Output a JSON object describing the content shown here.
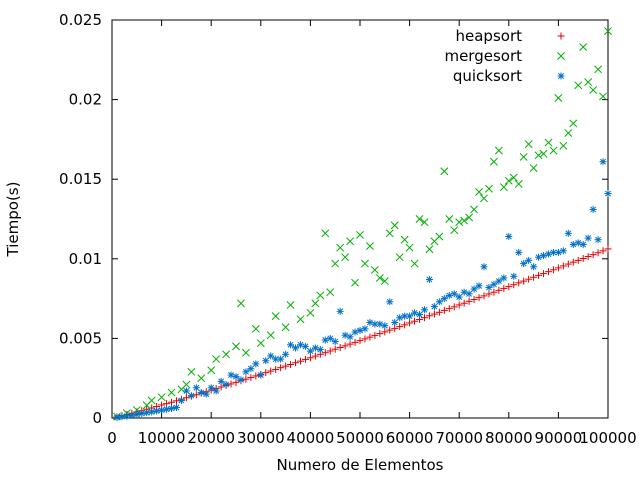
{
  "chart_data": {
    "type": "scatter",
    "title": "",
    "xlabel": "Numero de Elementos",
    "ylabel": "Tiempo(s)",
    "xlim": [
      0,
      100000
    ],
    "ylim": [
      0,
      0.025
    ],
    "grid": false,
    "legend_position": "top-right",
    "x_ticks": [
      "0",
      "10000",
      "20000",
      "30000",
      "40000",
      "50000",
      "60000",
      "70000",
      "80000",
      "90000",
      "100000"
    ],
    "y_ticks": [
      "0",
      "0.005",
      "0.01",
      "0.015",
      "0.02",
      "0.025"
    ],
    "series": [
      {
        "name": "heapsort",
        "marker": "+",
        "color": "#e00000",
        "points": [
          [
            1000,
            7e-05
          ],
          [
            2000,
            0.00015
          ],
          [
            3000,
            0.00022
          ],
          [
            4000,
            0.0003
          ],
          [
            5000,
            0.00038
          ],
          [
            6000,
            0.00046
          ],
          [
            7000,
            0.00055
          ],
          [
            8000,
            0.00063
          ],
          [
            9000,
            0.00072
          ],
          [
            10000,
            0.00082
          ],
          [
            11000,
            0.0009
          ],
          [
            12000,
            0.00099
          ],
          [
            13000,
            0.00108
          ],
          [
            14000,
            0.00118
          ],
          [
            15000,
            0.00127
          ],
          [
            16000,
            0.00137
          ],
          [
            17000,
            0.00146
          ],
          [
            18000,
            0.00156
          ],
          [
            19000,
            0.00165
          ],
          [
            20000,
            0.00175
          ],
          [
            21000,
            0.00185
          ],
          [
            22000,
            0.00195
          ],
          [
            23000,
            0.00204
          ],
          [
            24000,
            0.00214
          ],
          [
            25000,
            0.00224
          ],
          [
            26000,
            0.00234
          ],
          [
            27000,
            0.00244
          ],
          [
            28000,
            0.00254
          ],
          [
            29000,
            0.00264
          ],
          [
            30000,
            0.00274
          ],
          [
            31000,
            0.00285
          ],
          [
            32000,
            0.00295
          ],
          [
            33000,
            0.00305
          ],
          [
            34000,
            0.00316
          ],
          [
            35000,
            0.00326
          ],
          [
            36000,
            0.00336
          ],
          [
            37000,
            0.00347
          ],
          [
            38000,
            0.00357
          ],
          [
            39000,
            0.00368
          ],
          [
            40000,
            0.00378
          ],
          [
            41000,
            0.00389
          ],
          [
            42000,
            0.004
          ],
          [
            43000,
            0.0041
          ],
          [
            44000,
            0.00421
          ],
          [
            45000,
            0.00432
          ],
          [
            46000,
            0.00443
          ],
          [
            47000,
            0.00453
          ],
          [
            48000,
            0.00464
          ],
          [
            49000,
            0.00475
          ],
          [
            50000,
            0.00486
          ],
          [
            51000,
            0.00497
          ],
          [
            52000,
            0.00508
          ],
          [
            53000,
            0.00519
          ],
          [
            54000,
            0.0053
          ],
          [
            55000,
            0.00541
          ],
          [
            56000,
            0.00552
          ],
          [
            57000,
            0.00563
          ],
          [
            58000,
            0.00574
          ],
          [
            59000,
            0.00585
          ],
          [
            60000,
            0.00597
          ],
          [
            61000,
            0.00608
          ],
          [
            62000,
            0.00619
          ],
          [
            63000,
            0.0063
          ],
          [
            64000,
            0.00642
          ],
          [
            65000,
            0.00653
          ],
          [
            66000,
            0.00664
          ],
          [
            67000,
            0.00676
          ],
          [
            68000,
            0.00687
          ],
          [
            69000,
            0.00698
          ],
          [
            70000,
            0.0071
          ],
          [
            71000,
            0.00721
          ],
          [
            72000,
            0.00733
          ],
          [
            73000,
            0.00744
          ],
          [
            74000,
            0.00756
          ],
          [
            75000,
            0.00767
          ],
          [
            76000,
            0.00779
          ],
          [
            77000,
            0.0079
          ],
          [
            78000,
            0.00802
          ],
          [
            79000,
            0.00814
          ],
          [
            80000,
            0.00825
          ],
          [
            81000,
            0.00837
          ],
          [
            82000,
            0.00849
          ],
          [
            83000,
            0.0086
          ],
          [
            84000,
            0.00872
          ],
          [
            85000,
            0.00884
          ],
          [
            86000,
            0.00896
          ],
          [
            87000,
            0.00907
          ],
          [
            88000,
            0.00919
          ],
          [
            89000,
            0.00931
          ],
          [
            90000,
            0.00943
          ],
          [
            91000,
            0.00955
          ],
          [
            92000,
            0.00967
          ],
          [
            93000,
            0.00979
          ],
          [
            94000,
            0.0099
          ],
          [
            95000,
            0.01002
          ],
          [
            96000,
            0.01014
          ],
          [
            97000,
            0.01026
          ],
          [
            98000,
            0.01038
          ],
          [
            99000,
            0.0105
          ],
          [
            100000,
            0.01062
          ]
        ]
      },
      {
        "name": "mergesort",
        "marker": "x",
        "color": "#00b000",
        "points": [
          [
            1000,
            0.0001
          ],
          [
            3000,
            0.0003
          ],
          [
            5000,
            0.0005
          ],
          [
            7000,
            0.0008
          ],
          [
            8000,
            0.0011
          ],
          [
            10000,
            0.0013
          ],
          [
            12000,
            0.0016
          ],
          [
            14000,
            0.0018
          ],
          [
            15000,
            0.0021
          ],
          [
            16000,
            0.0029
          ],
          [
            18000,
            0.0025
          ],
          [
            20000,
            0.003
          ],
          [
            21000,
            0.0037
          ],
          [
            23000,
            0.004
          ],
          [
            25000,
            0.0045
          ],
          [
            26000,
            0.0072
          ],
          [
            27000,
            0.0041
          ],
          [
            29000,
            0.0056
          ],
          [
            30000,
            0.0047
          ],
          [
            32000,
            0.0052
          ],
          [
            33000,
            0.0064
          ],
          [
            35000,
            0.0057
          ],
          [
            36000,
            0.0071
          ],
          [
            38000,
            0.0062
          ],
          [
            40000,
            0.0066
          ],
          [
            41000,
            0.0072
          ],
          [
            42000,
            0.0077
          ],
          [
            43000,
            0.0116
          ],
          [
            44000,
            0.0079
          ],
          [
            45000,
            0.0097
          ],
          [
            46000,
            0.0107
          ],
          [
            47000,
            0.0101
          ],
          [
            48000,
            0.0111
          ],
          [
            49000,
            0.0085
          ],
          [
            50000,
            0.0115
          ],
          [
            51000,
            0.0097
          ],
          [
            52000,
            0.0108
          ],
          [
            53000,
            0.0093
          ],
          [
            54000,
            0.0088
          ],
          [
            55000,
            0.0086
          ],
          [
            56000,
            0.0116
          ],
          [
            57000,
            0.0121
          ],
          [
            58000,
            0.0101
          ],
          [
            59000,
            0.0112
          ],
          [
            60000,
            0.0107
          ],
          [
            61000,
            0.0097
          ],
          [
            62000,
            0.0125
          ],
          [
            63000,
            0.0123
          ],
          [
            64000,
            0.0106
          ],
          [
            65000,
            0.0111
          ],
          [
            66000,
            0.0114
          ],
          [
            67000,
            0.0155
          ],
          [
            68000,
            0.0125
          ],
          [
            69000,
            0.0118
          ],
          [
            70000,
            0.0123
          ],
          [
            71000,
            0.0124
          ],
          [
            72000,
            0.0126
          ],
          [
            73000,
            0.0131
          ],
          [
            74000,
            0.0142
          ],
          [
            75000,
            0.0138
          ],
          [
            76000,
            0.0144
          ],
          [
            77000,
            0.0161
          ],
          [
            78000,
            0.0168
          ],
          [
            79000,
            0.0145
          ],
          [
            80000,
            0.0149
          ],
          [
            81000,
            0.0151
          ],
          [
            82000,
            0.0147
          ],
          [
            83000,
            0.0164
          ],
          [
            84000,
            0.0172
          ],
          [
            85000,
            0.0157
          ],
          [
            86000,
            0.0165
          ],
          [
            87000,
            0.0166
          ],
          [
            88000,
            0.0173
          ],
          [
            89000,
            0.0168
          ],
          [
            90000,
            0.0201
          ],
          [
            91000,
            0.0171
          ],
          [
            92000,
            0.0179
          ],
          [
            93000,
            0.0185
          ],
          [
            94000,
            0.0209
          ],
          [
            95000,
            0.0233
          ],
          [
            96000,
            0.0211
          ],
          [
            97000,
            0.0206
          ],
          [
            98000,
            0.0219
          ],
          [
            99000,
            0.0202
          ],
          [
            100000,
            0.0243
          ]
        ]
      },
      {
        "name": "quicksort",
        "marker": "*",
        "color": "#0070c8",
        "points": [
          [
            1000,
            3e-05
          ],
          [
            2000,
            8e-05
          ],
          [
            3000,
            0.00012
          ],
          [
            4000,
            0.00017
          ],
          [
            5000,
            0.00022
          ],
          [
            6000,
            0.00028
          ],
          [
            7000,
            0.00033
          ],
          [
            8000,
            0.00038
          ],
          [
            9000,
            0.00044
          ],
          [
            10000,
            0.00049
          ],
          [
            11000,
            0.00055
          ],
          [
            12000,
            0.0006
          ],
          [
            13000,
            0.00066
          ],
          [
            14000,
            0.0011
          ],
          [
            15000,
            0.0017
          ],
          [
            16000,
            0.0014
          ],
          [
            17000,
            0.0019
          ],
          [
            18000,
            0.0016
          ],
          [
            19000,
            0.0015
          ],
          [
            20000,
            0.0019
          ],
          [
            21000,
            0.0017
          ],
          [
            22000,
            0.0023
          ],
          [
            23000,
            0.0021
          ],
          [
            24000,
            0.0027
          ],
          [
            25000,
            0.0026
          ],
          [
            26000,
            0.0024
          ],
          [
            27000,
            0.0029
          ],
          [
            28000,
            0.0031
          ],
          [
            29000,
            0.0034
          ],
          [
            30000,
            0.0027
          ],
          [
            31000,
            0.0036
          ],
          [
            32000,
            0.0039
          ],
          [
            33000,
            0.0037
          ],
          [
            34000,
            0.0037
          ],
          [
            35000,
            0.004
          ],
          [
            36000,
            0.0046
          ],
          [
            37000,
            0.0044
          ],
          [
            38000,
            0.0046
          ],
          [
            39000,
            0.0045
          ],
          [
            40000,
            0.0042
          ],
          [
            41000,
            0.0044
          ],
          [
            42000,
            0.0043
          ],
          [
            43000,
            0.0049
          ],
          [
            44000,
            0.005
          ],
          [
            45000,
            0.0048
          ],
          [
            46000,
            0.0067
          ],
          [
            47000,
            0.0052
          ],
          [
            48000,
            0.0051
          ],
          [
            49000,
            0.0054
          ],
          [
            50000,
            0.0055
          ],
          [
            51000,
            0.0056
          ],
          [
            52000,
            0.006
          ],
          [
            53000,
            0.0059
          ],
          [
            54000,
            0.0059
          ],
          [
            55000,
            0.0058
          ],
          [
            56000,
            0.0073
          ],
          [
            57000,
            0.006
          ],
          [
            58000,
            0.0063
          ],
          [
            59000,
            0.0064
          ],
          [
            60000,
            0.0064
          ],
          [
            61000,
            0.0066
          ],
          [
            62000,
            0.0065
          ],
          [
            63000,
            0.0068
          ],
          [
            64000,
            0.0087
          ],
          [
            65000,
            0.007
          ],
          [
            66000,
            0.0073
          ],
          [
            67000,
            0.0075
          ],
          [
            68000,
            0.0077
          ],
          [
            69000,
            0.0078
          ],
          [
            70000,
            0.0076
          ],
          [
            71000,
            0.0079
          ],
          [
            72000,
            0.0078
          ],
          [
            73000,
            0.0081
          ],
          [
            74000,
            0.0083
          ],
          [
            75000,
            0.0095
          ],
          [
            76000,
            0.0082
          ],
          [
            77000,
            0.0084
          ],
          [
            78000,
            0.0086
          ],
          [
            79000,
            0.0088
          ],
          [
            80000,
            0.0114
          ],
          [
            81000,
            0.0089
          ],
          [
            82000,
            0.0104
          ],
          [
            83000,
            0.0097
          ],
          [
            84000,
            0.0099
          ],
          [
            85000,
            0.0095
          ],
          [
            86000,
            0.0101
          ],
          [
            87000,
            0.0102
          ],
          [
            88000,
            0.0103
          ],
          [
            89000,
            0.0104
          ],
          [
            90000,
            0.0104
          ],
          [
            91000,
            0.0105
          ],
          [
            92000,
            0.0116
          ],
          [
            93000,
            0.0109
          ],
          [
            94000,
            0.011
          ],
          [
            95000,
            0.0109
          ],
          [
            96000,
            0.0113
          ],
          [
            97000,
            0.0131
          ],
          [
            98000,
            0.0112
          ],
          [
            99000,
            0.0161
          ],
          [
            100000,
            0.0141
          ]
        ]
      }
    ]
  }
}
